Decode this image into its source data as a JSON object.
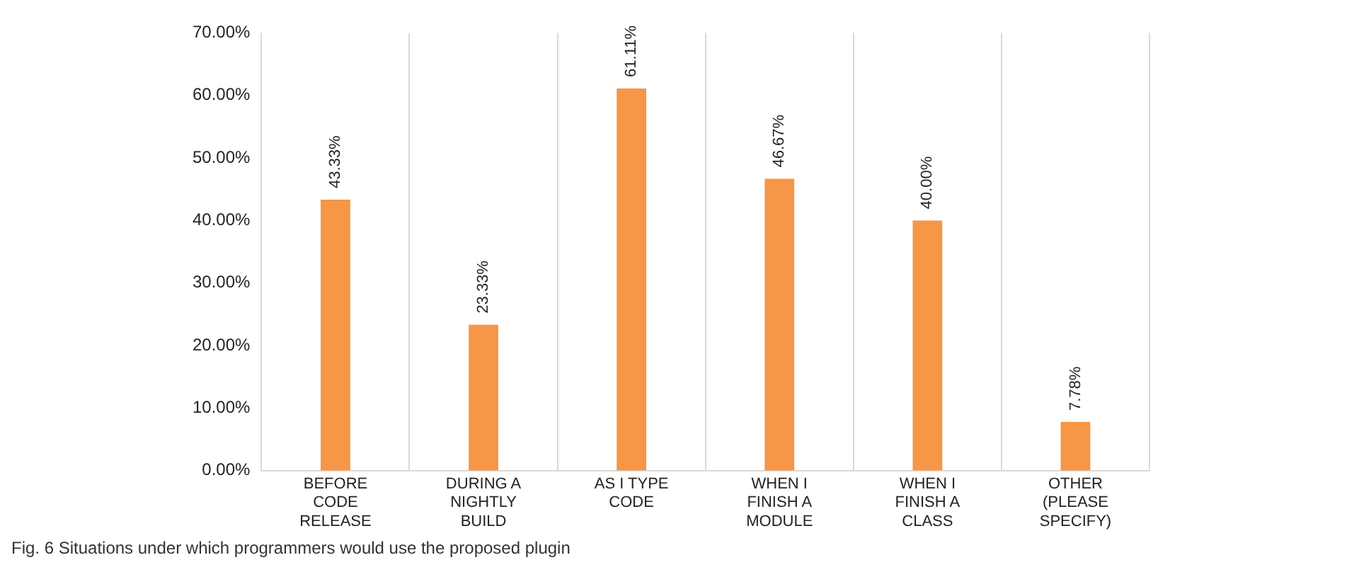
{
  "chart_data": {
    "type": "bar",
    "categories": [
      "BEFORE CODE RELEASE",
      "DURING A NIGHTLY BUILD",
      "AS I TYPE CODE",
      "WHEN I FINISH A MODULE",
      "WHEN I FINISH A CLASS",
      "OTHER (PLEASE SPECIFY)"
    ],
    "values": [
      43.33,
      23.33,
      61.11,
      46.67,
      40.0,
      7.78
    ],
    "value_labels": [
      "43.33%",
      "23.33%",
      "61.11%",
      "46.67%",
      "40.00%",
      "7.78%"
    ],
    "color": "#f79646",
    "ylim": [
      0,
      70
    ],
    "yticks": [
      {
        "value": 0,
        "label": "0.00%"
      },
      {
        "value": 10,
        "label": "10.00%"
      },
      {
        "value": 20,
        "label": "20.00%"
      },
      {
        "value": 30,
        "label": "30.00%"
      },
      {
        "value": 40,
        "label": "40.00%"
      },
      {
        "value": 50,
        "label": "50.00%"
      },
      {
        "value": 60,
        "label": "60.00%"
      },
      {
        "value": 70,
        "label": "70.00%"
      }
    ],
    "grid": "x",
    "annotations": [
      "Fig. 6 Situations under which programmers would use the proposed plugin"
    ]
  }
}
